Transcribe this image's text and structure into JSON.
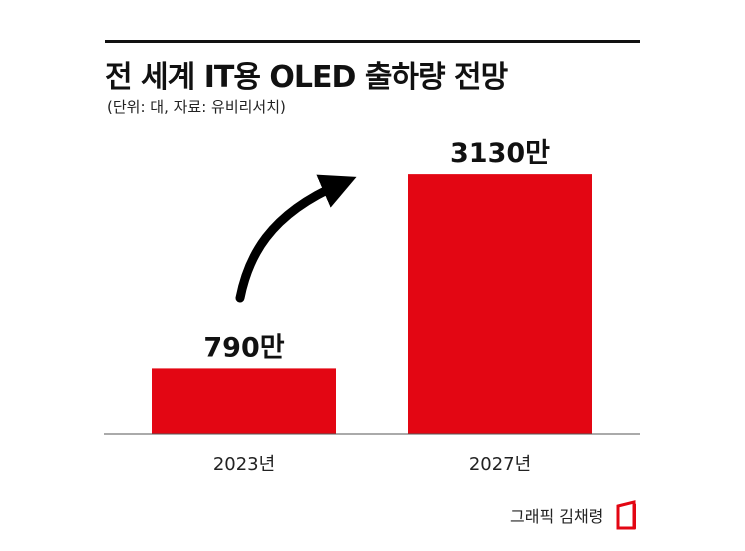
{
  "header": {
    "title": "전 세계 IT용 OLED 출하량 전망",
    "subtitle": "(단위: 대, 자료: 유비리서치)"
  },
  "colors": {
    "bar": "#e30613",
    "text": "#111111",
    "arrow": "#000000"
  },
  "chart_data": {
    "type": "bar",
    "title": "전 세계 IT용 OLED 출하량 전망",
    "subtitle": "(단위: 대, 자료: 유비리서치)",
    "categories": [
      "2023년",
      "2027년"
    ],
    "values": [
      7900000,
      31300000
    ],
    "data_labels": [
      "790만",
      "3130만"
    ],
    "ylim": [
      0,
      33000000
    ],
    "grid": false,
    "legend": "none",
    "annotation": "upward growth arrow"
  },
  "footer": {
    "credit": "그래픽 김채령"
  }
}
